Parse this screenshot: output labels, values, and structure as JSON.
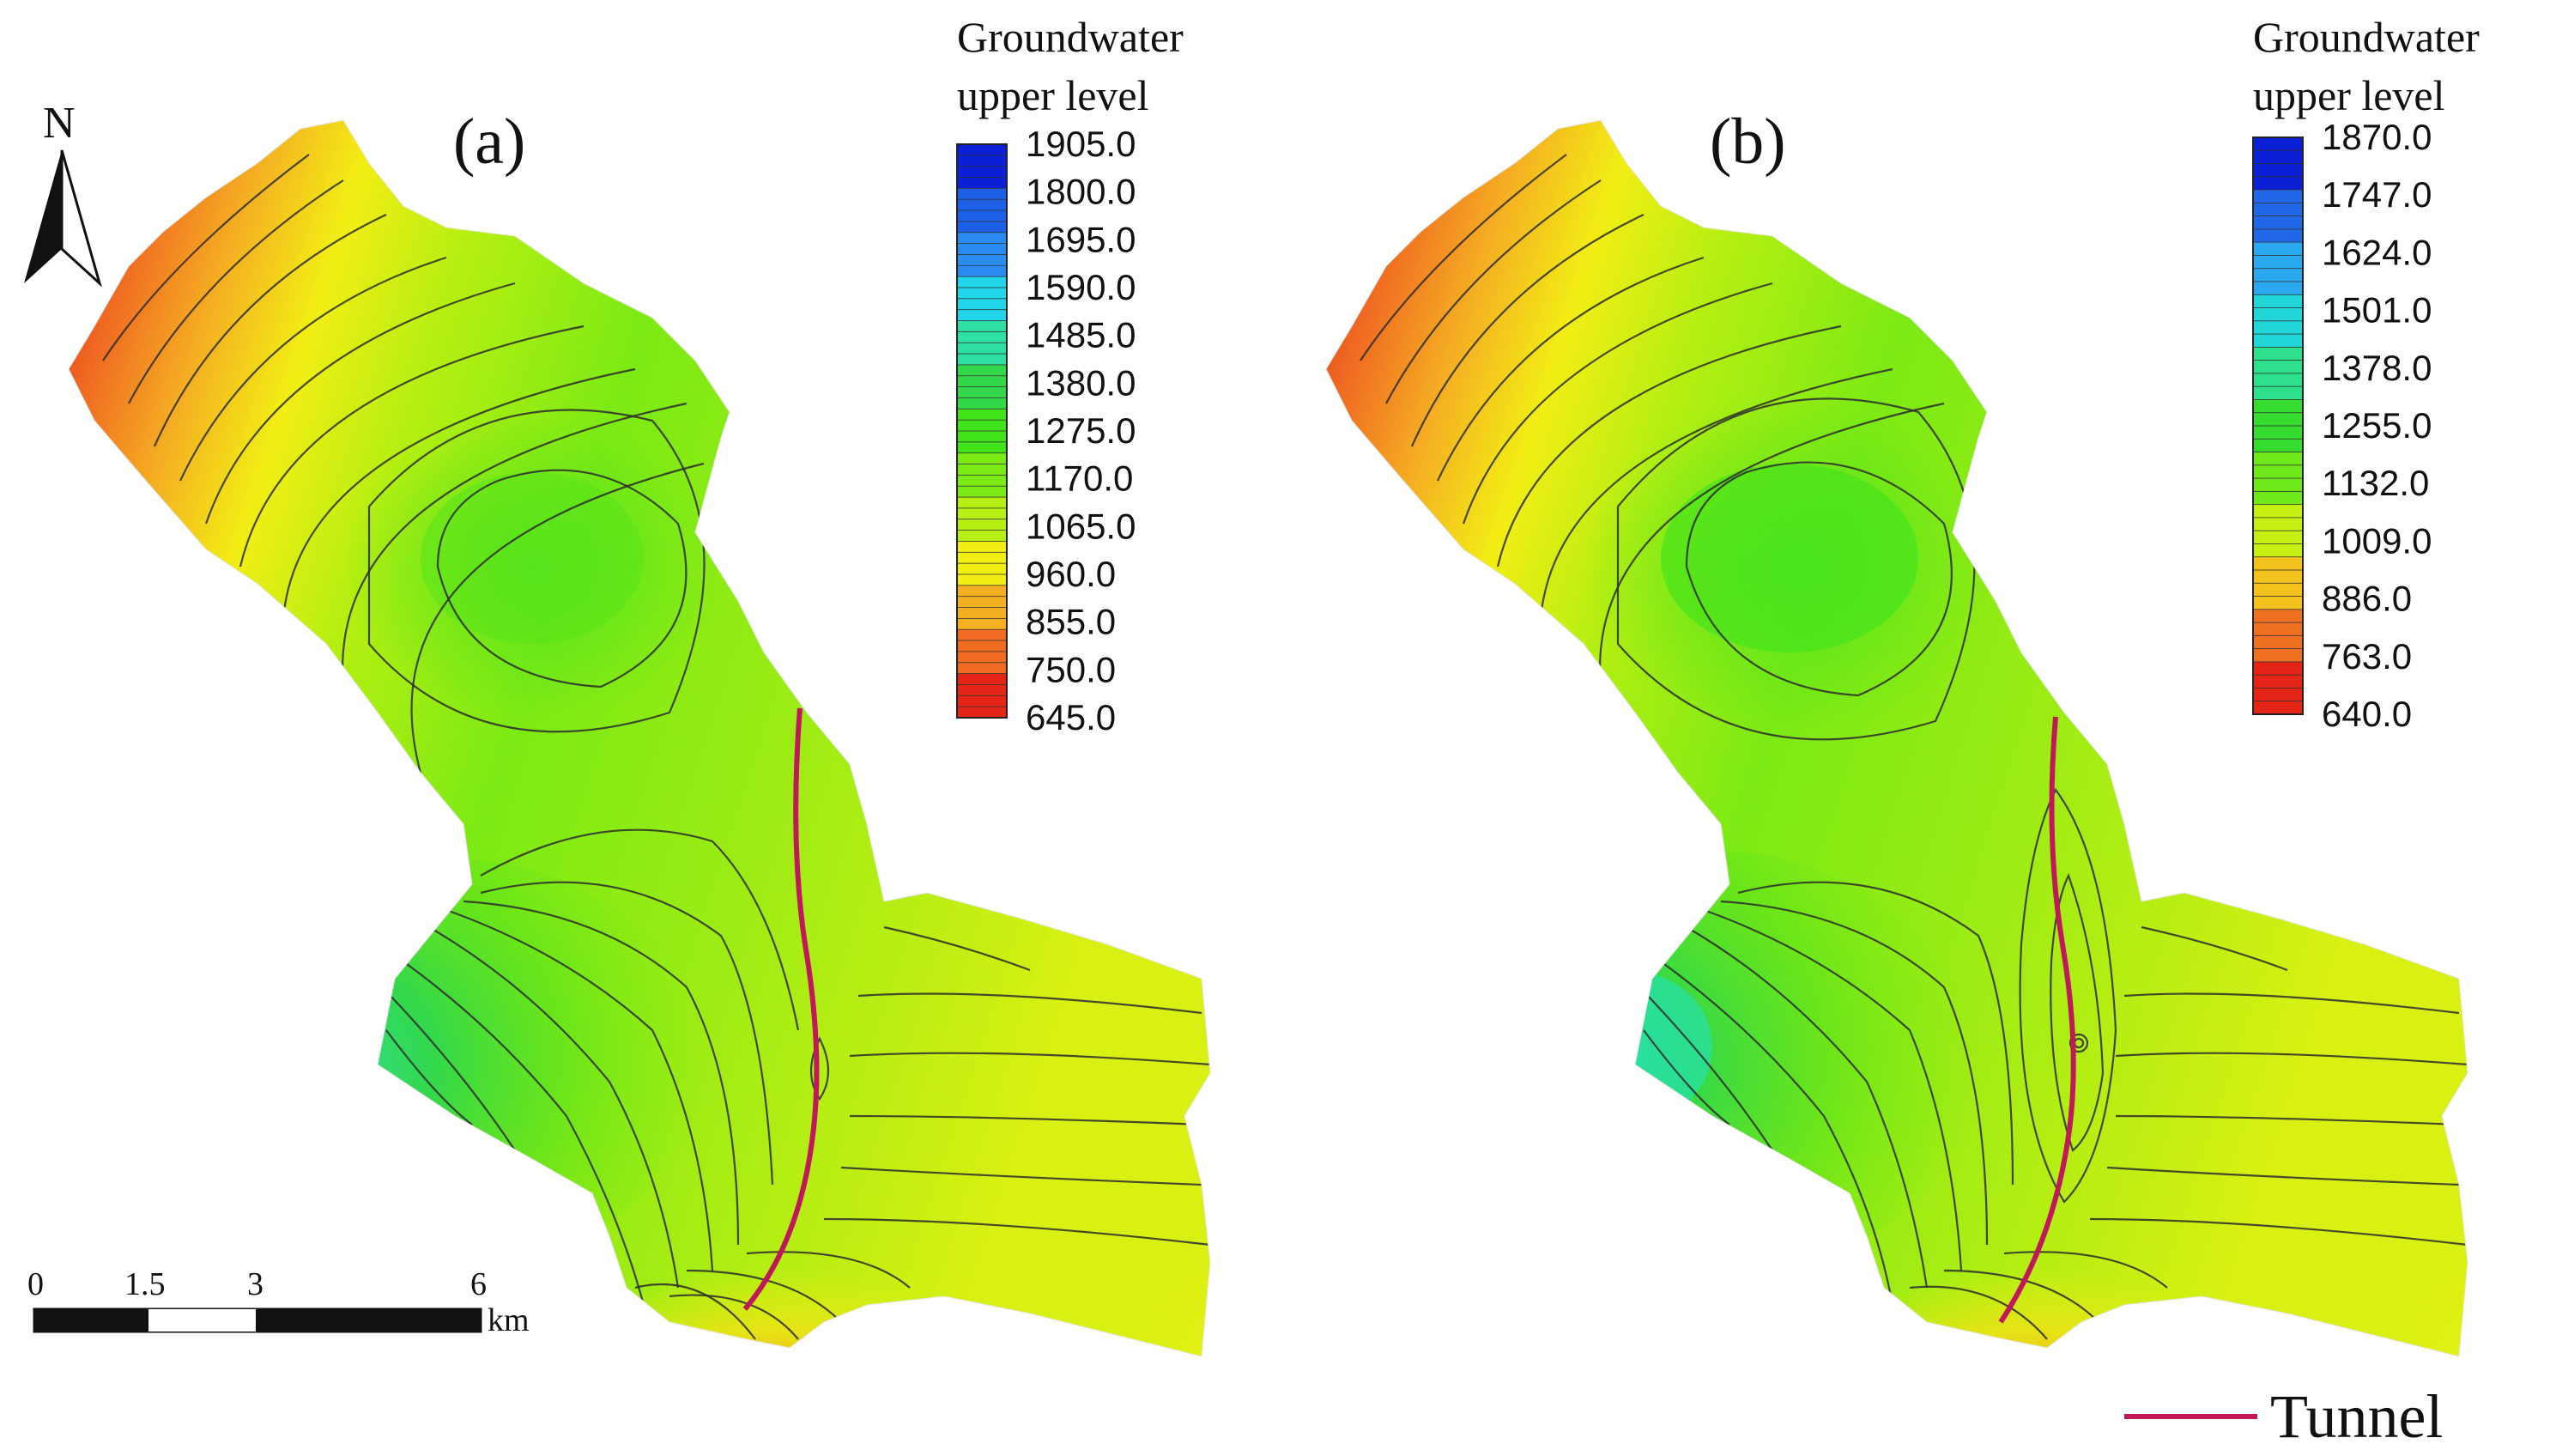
{
  "panels": [
    {
      "label": "(a)",
      "legend": {
        "title_line1": "Groundwater",
        "title_line2": "upper level",
        "values": [
          "1905.0",
          "1800.0",
          "1695.0",
          "1590.0",
          "1485.0",
          "1380.0",
          "1275.0",
          "1170.0",
          "1065.0",
          "960.0",
          "855.0",
          "750.0",
          "645.0"
        ],
        "colors_top_to_bottom": [
          "#0a1fd6",
          "#1d5fe6",
          "#2a8cf0",
          "#20d6e8",
          "#2ee0a6",
          "#33d84a",
          "#43e31c",
          "#7cea14",
          "#b6ef12",
          "#f2ee14",
          "#f5b022",
          "#f06a22",
          "#e32417"
        ]
      }
    },
    {
      "label": "(b)",
      "legend": {
        "title_line1": "Groundwater",
        "title_line2": "upper level",
        "values": [
          "1870.0",
          "1747.0",
          "1624.0",
          "1501.0",
          "1378.0",
          "1255.0",
          "1132.0",
          "1009.0",
          "886.0",
          "763.0",
          "640.0"
        ],
        "colors_top_to_bottom": [
          "#0a1fd6",
          "#2068e8",
          "#2aa8f0",
          "#20d6d8",
          "#2ee08c",
          "#36dc30",
          "#6fe81a",
          "#c6f012",
          "#f3c21c",
          "#f07022",
          "#e32417"
        ]
      }
    }
  ],
  "north_arrow": {
    "label": "N"
  },
  "scale_bar": {
    "ticks": [
      "0",
      "1.5",
      "3",
      "6"
    ],
    "unit": "km"
  },
  "tunnel_legend": {
    "label": "Tunnel",
    "color": "#c0185a"
  }
}
